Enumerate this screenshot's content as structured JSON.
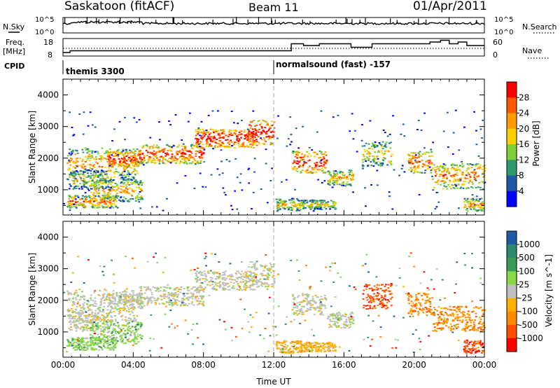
{
  "header": {
    "station": "Saskatoon (fitACF)",
    "beam": "Beam 11",
    "date": "01/Apr/2011"
  },
  "side_labels": {
    "nsky": "N.Sky",
    "nsearch": "N.Search",
    "freq_line1": "Freq.",
    "freq_line2": "[MHz]",
    "nave": "Nave",
    "cpid": "CPID"
  },
  "noise_panel": {
    "ticks_left": [
      "10^5",
      "10^0"
    ],
    "ticks_right": [
      "10^5",
      "10^0"
    ]
  },
  "freq_panel": {
    "ticks_left": [
      "18",
      "8"
    ],
    "ticks_right": [
      "60",
      "0"
    ]
  },
  "cpid_panel": {
    "mode1": "themis 3300",
    "mode2": "normalsound (fast) -157"
  },
  "x_axis": {
    "label": "Time UT",
    "ticks": [
      "00:00",
      "04:00",
      "08:00",
      "12:00",
      "16:00",
      "20:00",
      "00:00"
    ]
  },
  "y_axis": {
    "label": "Slant Range [km]",
    "ticks": [
      "1000",
      "2000",
      "3000",
      "4000"
    ]
  },
  "power_colorbar": {
    "label": "Power [dB]",
    "ticks": [
      "28",
      "24",
      "20",
      "16",
      "12",
      "8",
      "4"
    ],
    "colors": [
      "#ff0000",
      "#ff5a00",
      "#ff9a00",
      "#ffd000",
      "#7fcf3a",
      "#2e9a6e",
      "#1f5aa6",
      "#0000ff"
    ]
  },
  "velocity_colorbar": {
    "label": "Velocity [m s^-1]",
    "ticks": [
      "1000",
      "500",
      "100",
      "25",
      "-25",
      "-100",
      "-500",
      "-1000"
    ],
    "colors": [
      "#1f5aa6",
      "#2e8a6e",
      "#3a9a5a",
      "#88d848",
      "#c0c0c0",
      "#ffb000",
      "#ff8a00",
      "#ff5000",
      "#ff0000"
    ]
  },
  "chart_data": [
    {
      "type": "line",
      "panel": "noise",
      "series": [
        {
          "name": "N.Sky",
          "style": "solid"
        },
        {
          "name": "N.Search",
          "style": "dotted"
        }
      ],
      "x": [
        0,
        4,
        8,
        12,
        16,
        20,
        24
      ],
      "xlim": [
        0,
        24
      ]
    },
    {
      "type": "line",
      "panel": "frequency",
      "series": [
        {
          "name": "Freq.",
          "style": "solid",
          "x": [
            0,
            0.4,
            12.6,
            13.0,
            13.7,
            14.6,
            16.4,
            17.6,
            20.9,
            21.5,
            22.0,
            22.5,
            23.0,
            24
          ],
          "values": [
            10,
            11,
            11,
            15,
            14,
            15,
            13,
            15,
            16,
            17,
            15,
            16,
            14,
            14
          ]
        },
        {
          "name": "Nave",
          "style": "dotted"
        }
      ],
      "ylim_left": [
        8,
        18
      ],
      "ylim_right": [
        0,
        60
      ],
      "xlim": [
        0,
        24
      ]
    },
    {
      "type": "heatmap",
      "panel": "power",
      "xlabel": "Time UT",
      "ylabel": "Slant Range [km]",
      "xlim": [
        0,
        24
      ],
      "ylim": [
        200,
        4500
      ],
      "colorbar_label": "Power [dB]",
      "cmap_range": [
        0,
        30
      ]
    },
    {
      "type": "heatmap",
      "panel": "velocity",
      "xlabel": "Time UT",
      "ylabel": "Slant Range [km]",
      "xlim": [
        0,
        24
      ],
      "ylim": [
        200,
        4500
      ],
      "colorbar_label": "Velocity [m s^-1]",
      "cmap_range": [
        -1000,
        1000
      ]
    }
  ]
}
